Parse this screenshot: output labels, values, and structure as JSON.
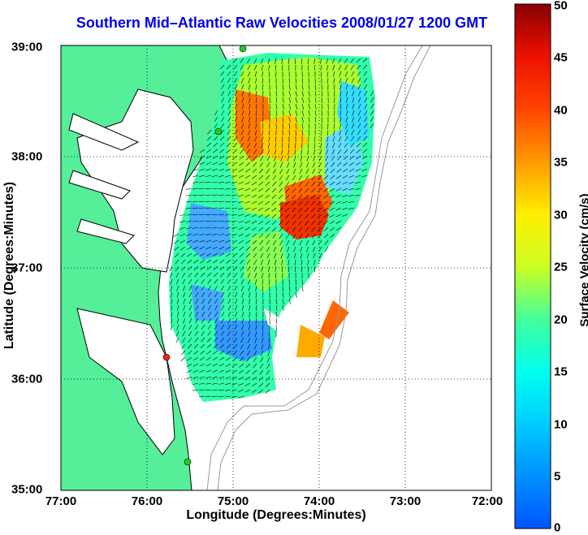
{
  "title": "Southern Mid–Atlantic Raw Velocities 2008/01/27 1200 GMT",
  "title_color": "#0000ee",
  "map": {
    "x_axis_label": "Longitude (Degrees:Minutes)",
    "y_axis_label": "Latitude (Degrees:Minutes)",
    "x_ticks": [
      "77:00",
      "76:00",
      "75:00",
      "74:00",
      "73:00",
      "72:00"
    ],
    "y_ticks": [
      "39:00",
      "38:00",
      "37:00",
      "36:00",
      "35:00"
    ],
    "land_color": "#55ee99",
    "grid": "dotted"
  },
  "colorbar": {
    "label": "Surface Velocity (cm/s)",
    "ticks": [
      "50",
      "45",
      "40",
      "35",
      "30",
      "25",
      "20",
      "15",
      "10",
      "5",
      "0"
    ],
    "range": [
      0,
      50
    ],
    "colormap": "jet"
  },
  "markers": [
    {
      "name": "station-north",
      "color": "#22cc22"
    },
    {
      "name": "station-mid",
      "color": "#22cc22"
    },
    {
      "name": "station-south",
      "color": "#22cc22"
    },
    {
      "name": "station-hatteras",
      "color": "#ee2222"
    }
  ]
}
